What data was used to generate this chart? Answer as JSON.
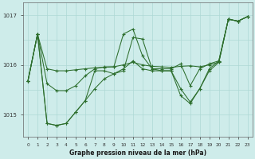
{
  "background_color": "#ceecea",
  "grid_color": "#aed8d5",
  "line_color": "#2d6e2d",
  "marker_color": "#2d6e2d",
  "xlabel": "Graphe pression niveau de la mer (hPa)",
  "yticks": [
    1015,
    1016,
    1017
  ],
  "xlim": [
    -0.5,
    23.5
  ],
  "ylim": [
    1014.55,
    1017.25
  ],
  "xticks": [
    0,
    1,
    2,
    3,
    4,
    5,
    6,
    7,
    8,
    9,
    10,
    11,
    12,
    13,
    14,
    15,
    16,
    17,
    18,
    19,
    20,
    21,
    22,
    23
  ],
  "series": [
    [
      1015.68,
      1016.62,
      1015.92,
      1015.88,
      1015.88,
      1015.9,
      1015.92,
      1015.94,
      1015.95,
      1015.96,
      1016.0,
      1016.05,
      1016.0,
      1015.97,
      1015.96,
      1015.95,
      1015.97,
      1015.98,
      1015.96,
      1016.0,
      1016.05,
      1016.92,
      1016.88,
      1016.97
    ],
    [
      1015.68,
      1016.62,
      1014.82,
      1014.78,
      1014.82,
      1015.05,
      1015.28,
      1015.52,
      1015.72,
      1015.82,
      1015.88,
      1016.55,
      1016.52,
      1015.92,
      1015.88,
      1015.88,
      1015.52,
      1015.25,
      1015.52,
      1015.88,
      1016.05,
      1016.92,
      1016.88,
      1016.97
    ],
    [
      1015.68,
      1016.62,
      1015.62,
      1015.48,
      1015.48,
      1015.58,
      1015.78,
      1015.92,
      1015.96,
      1015.96,
      1016.62,
      1016.72,
      1016.18,
      1015.92,
      1015.92,
      1015.92,
      1016.02,
      1015.58,
      1015.92,
      1016.02,
      1016.08,
      1016.92,
      1016.88,
      1016.97
    ],
    [
      1015.68,
      1016.62,
      1014.82,
      1014.78,
      1014.82,
      1015.05,
      1015.28,
      1015.88,
      1015.88,
      1015.82,
      1015.92,
      1016.08,
      1015.92,
      1015.88,
      1015.88,
      1015.88,
      1015.38,
      1015.22,
      1015.52,
      1015.92,
      1016.08,
      1016.92,
      1016.88,
      1016.97
    ]
  ]
}
